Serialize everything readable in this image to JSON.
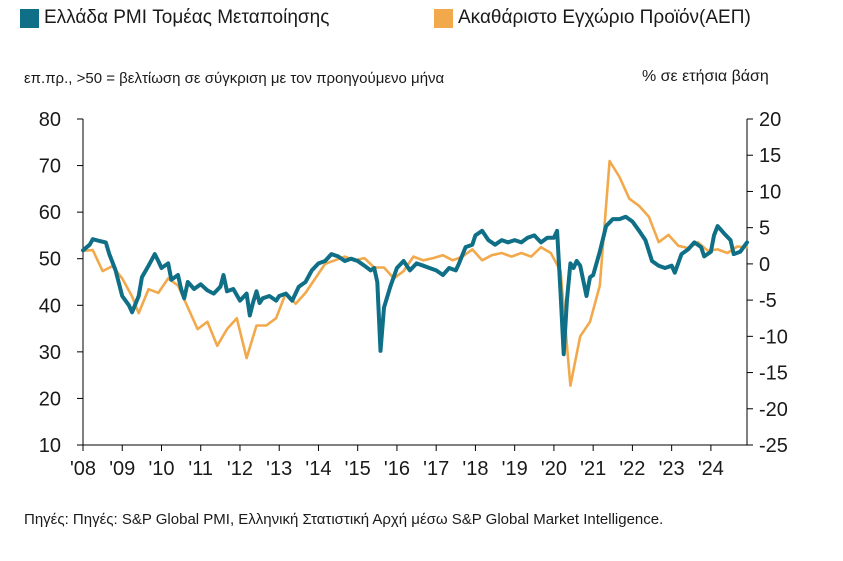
{
  "legend": {
    "pmi_label": "Ελλάδα PMI Τομέας Μεταποίησης",
    "gdp_label": "Ακαθάριστο Εγχώριο Προϊόν(ΑΕΠ)"
  },
  "left_axis_note": "επ.πρ., >50 = βελτίωση σε σύγκριση με τον προηγούμενο μήνα",
  "right_axis_note": "% σε ετήσια βάση",
  "source": "Πηγές: Πηγές: S&P Global PMI, Ελληνική Στατιστική Αρχή μέσω S&P Global Market Intelligence.",
  "colors": {
    "pmi": "#0e6f86",
    "gdp": "#f2a94b",
    "axis": "#000000"
  },
  "chart_data": {
    "type": "line",
    "x_tick_labels": [
      "'08",
      "'09",
      "'10",
      "'11",
      "'12",
      "'13",
      "'14",
      "'15",
      "'16",
      "'17",
      "'18",
      "'19",
      "'20",
      "'21",
      "'22",
      "'23",
      "'24"
    ],
    "left_axis": {
      "ticks": [
        10,
        20,
        30,
        40,
        50,
        60,
        70,
        80
      ],
      "ylim": [
        10,
        80
      ]
    },
    "right_axis": {
      "ticks": [
        -25,
        -20,
        -15,
        -10,
        -5,
        0,
        5,
        10,
        15,
        20
      ],
      "ylim": [
        -25,
        20
      ]
    },
    "grid": false,
    "legend_position": "top",
    "series": [
      {
        "name": "Ελλάδα PMI Τομέας Μεταποίησης",
        "axis": "left",
        "points": [
          [
            2008.0,
            51.8
          ],
          [
            2008.17,
            53.0
          ],
          [
            2008.25,
            54.2
          ],
          [
            2008.42,
            53.8
          ],
          [
            2008.58,
            53.5
          ],
          [
            2008.67,
            51.0
          ],
          [
            2008.83,
            47.5
          ],
          [
            2009.0,
            42.0
          ],
          [
            2009.17,
            40.0
          ],
          [
            2009.25,
            38.5
          ],
          [
            2009.42,
            42.0
          ],
          [
            2009.5,
            46.0
          ],
          [
            2009.67,
            48.5
          ],
          [
            2009.83,
            51.0
          ],
          [
            2009.92,
            49.5
          ],
          [
            2010.0,
            48.0
          ],
          [
            2010.17,
            49.0
          ],
          [
            2010.25,
            45.5
          ],
          [
            2010.42,
            46.5
          ],
          [
            2010.5,
            43.5
          ],
          [
            2010.58,
            41.5
          ],
          [
            2010.67,
            45.0
          ],
          [
            2010.83,
            43.5
          ],
          [
            2011.0,
            44.5
          ],
          [
            2011.17,
            43.2
          ],
          [
            2011.33,
            42.5
          ],
          [
            2011.5,
            44.0
          ],
          [
            2011.58,
            46.5
          ],
          [
            2011.67,
            43.0
          ],
          [
            2011.83,
            43.5
          ],
          [
            2012.0,
            41.0
          ],
          [
            2012.17,
            42.5
          ],
          [
            2012.25,
            37.8
          ],
          [
            2012.33,
            40.5
          ],
          [
            2012.42,
            43.0
          ],
          [
            2012.5,
            40.5
          ],
          [
            2012.58,
            41.5
          ],
          [
            2012.75,
            42.0
          ],
          [
            2012.92,
            41.0
          ],
          [
            2013.0,
            42.0
          ],
          [
            2013.17,
            42.5
          ],
          [
            2013.33,
            41.0
          ],
          [
            2013.5,
            44.0
          ],
          [
            2013.67,
            45.0
          ],
          [
            2013.83,
            47.5
          ],
          [
            2014.0,
            49.0
          ],
          [
            2014.17,
            49.5
          ],
          [
            2014.33,
            51.0
          ],
          [
            2014.5,
            50.5
          ],
          [
            2014.67,
            49.5
          ],
          [
            2014.83,
            50.0
          ],
          [
            2015.0,
            49.5
          ],
          [
            2015.17,
            48.5
          ],
          [
            2015.33,
            47.5
          ],
          [
            2015.42,
            48.0
          ],
          [
            2015.5,
            45.0
          ],
          [
            2015.58,
            30.2
          ],
          [
            2015.67,
            39.5
          ],
          [
            2015.83,
            44.0
          ],
          [
            2016.0,
            48.0
          ],
          [
            2016.17,
            49.5
          ],
          [
            2016.33,
            47.5
          ],
          [
            2016.5,
            49.0
          ],
          [
            2016.67,
            48.5
          ],
          [
            2016.83,
            48.0
          ],
          [
            2017.0,
            47.5
          ],
          [
            2017.17,
            46.5
          ],
          [
            2017.33,
            48.0
          ],
          [
            2017.5,
            47.5
          ],
          [
            2017.58,
            49.0
          ],
          [
            2017.75,
            52.5
          ],
          [
            2017.92,
            53.0
          ],
          [
            2018.0,
            55.0
          ],
          [
            2018.17,
            56.0
          ],
          [
            2018.33,
            54.0
          ],
          [
            2018.5,
            53.0
          ],
          [
            2018.67,
            54.0
          ],
          [
            2018.83,
            53.5
          ],
          [
            2019.0,
            54.0
          ],
          [
            2019.17,
            53.5
          ],
          [
            2019.33,
            54.5
          ],
          [
            2019.5,
            55.0
          ],
          [
            2019.67,
            53.5
          ],
          [
            2019.83,
            54.5
          ],
          [
            2020.0,
            54.5
          ],
          [
            2020.08,
            56.0
          ],
          [
            2020.17,
            42.5
          ],
          [
            2020.25,
            29.5
          ],
          [
            2020.33,
            41.0
          ],
          [
            2020.42,
            49.0
          ],
          [
            2020.5,
            48.0
          ],
          [
            2020.58,
            49.5
          ],
          [
            2020.67,
            48.5
          ],
          [
            2020.83,
            42.0
          ],
          [
            2020.92,
            46.0
          ],
          [
            2021.0,
            46.5
          ],
          [
            2021.17,
            51.5
          ],
          [
            2021.33,
            57.0
          ],
          [
            2021.5,
            58.5
          ],
          [
            2021.67,
            58.5
          ],
          [
            2021.83,
            59.0
          ],
          [
            2022.0,
            58.0
          ],
          [
            2022.17,
            56.0
          ],
          [
            2022.33,
            54.0
          ],
          [
            2022.5,
            49.5
          ],
          [
            2022.67,
            48.5
          ],
          [
            2022.83,
            48.0
          ],
          [
            2023.0,
            48.5
          ],
          [
            2023.08,
            47.0
          ],
          [
            2023.25,
            51.0
          ],
          [
            2023.42,
            52.0
          ],
          [
            2023.58,
            53.5
          ],
          [
            2023.75,
            52.5
          ],
          [
            2023.83,
            50.5
          ],
          [
            2024.0,
            51.5
          ],
          [
            2024.08,
            55.0
          ],
          [
            2024.17,
            57.0
          ],
          [
            2024.33,
            55.5
          ],
          [
            2024.5,
            54.0
          ],
          [
            2024.58,
            51.0
          ],
          [
            2024.75,
            51.5
          ],
          [
            2024.92,
            53.5
          ]
        ]
      },
      {
        "name": "Ακαθάριστο Εγχώριο Προϊόν(ΑΕΠ)",
        "axis": "right",
        "points": [
          [
            2008.0,
            1.8
          ],
          [
            2008.25,
            1.9
          ],
          [
            2008.5,
            -1.0
          ],
          [
            2008.75,
            -0.3
          ],
          [
            2009.0,
            -2.0
          ],
          [
            2009.25,
            -4.5
          ],
          [
            2009.42,
            -6.8
          ],
          [
            2009.67,
            -3.5
          ],
          [
            2009.92,
            -4.0
          ],
          [
            2010.17,
            -2.0
          ],
          [
            2010.42,
            -3.0
          ],
          [
            2010.67,
            -6.0
          ],
          [
            2010.92,
            -9.0
          ],
          [
            2011.17,
            -8.0
          ],
          [
            2011.42,
            -11.3
          ],
          [
            2011.67,
            -9.0
          ],
          [
            2011.92,
            -7.5
          ],
          [
            2012.17,
            -13.0
          ],
          [
            2012.42,
            -8.5
          ],
          [
            2012.67,
            -8.5
          ],
          [
            2012.92,
            -7.5
          ],
          [
            2013.17,
            -4.0
          ],
          [
            2013.42,
            -5.5
          ],
          [
            2013.67,
            -4.0
          ],
          [
            2013.92,
            -2.0
          ],
          [
            2014.17,
            0.0
          ],
          [
            2014.42,
            0.5
          ],
          [
            2014.67,
            1.0
          ],
          [
            2014.92,
            0.5
          ],
          [
            2015.17,
            0.8
          ],
          [
            2015.42,
            -0.5
          ],
          [
            2015.67,
            -0.5
          ],
          [
            2015.92,
            -2.0
          ],
          [
            2016.17,
            -1.0
          ],
          [
            2016.42,
            1.0
          ],
          [
            2016.67,
            0.5
          ],
          [
            2016.92,
            0.8
          ],
          [
            2017.17,
            1.2
          ],
          [
            2017.42,
            0.5
          ],
          [
            2017.67,
            1.0
          ],
          [
            2017.92,
            2.0
          ],
          [
            2018.17,
            0.5
          ],
          [
            2018.42,
            1.2
          ],
          [
            2018.67,
            1.5
          ],
          [
            2018.92,
            1.0
          ],
          [
            2019.17,
            1.5
          ],
          [
            2019.42,
            1.0
          ],
          [
            2019.67,
            2.3
          ],
          [
            2019.92,
            1.5
          ],
          [
            2020.17,
            -1.0
          ],
          [
            2020.42,
            -16.8
          ],
          [
            2020.67,
            -10.0
          ],
          [
            2020.92,
            -8.0
          ],
          [
            2021.17,
            -3.0
          ],
          [
            2021.42,
            14.2
          ],
          [
            2021.67,
            12.0
          ],
          [
            2021.92,
            9.0
          ],
          [
            2022.17,
            8.0
          ],
          [
            2022.42,
            6.5
          ],
          [
            2022.67,
            3.0
          ],
          [
            2022.92,
            4.0
          ],
          [
            2023.17,
            2.5
          ],
          [
            2023.42,
            2.2
          ],
          [
            2023.67,
            3.0
          ],
          [
            2023.92,
            1.8
          ],
          [
            2024.17,
            2.0
          ],
          [
            2024.42,
            1.5
          ],
          [
            2024.67,
            2.4
          ],
          [
            2024.92,
            2.3
          ]
        ]
      }
    ]
  }
}
